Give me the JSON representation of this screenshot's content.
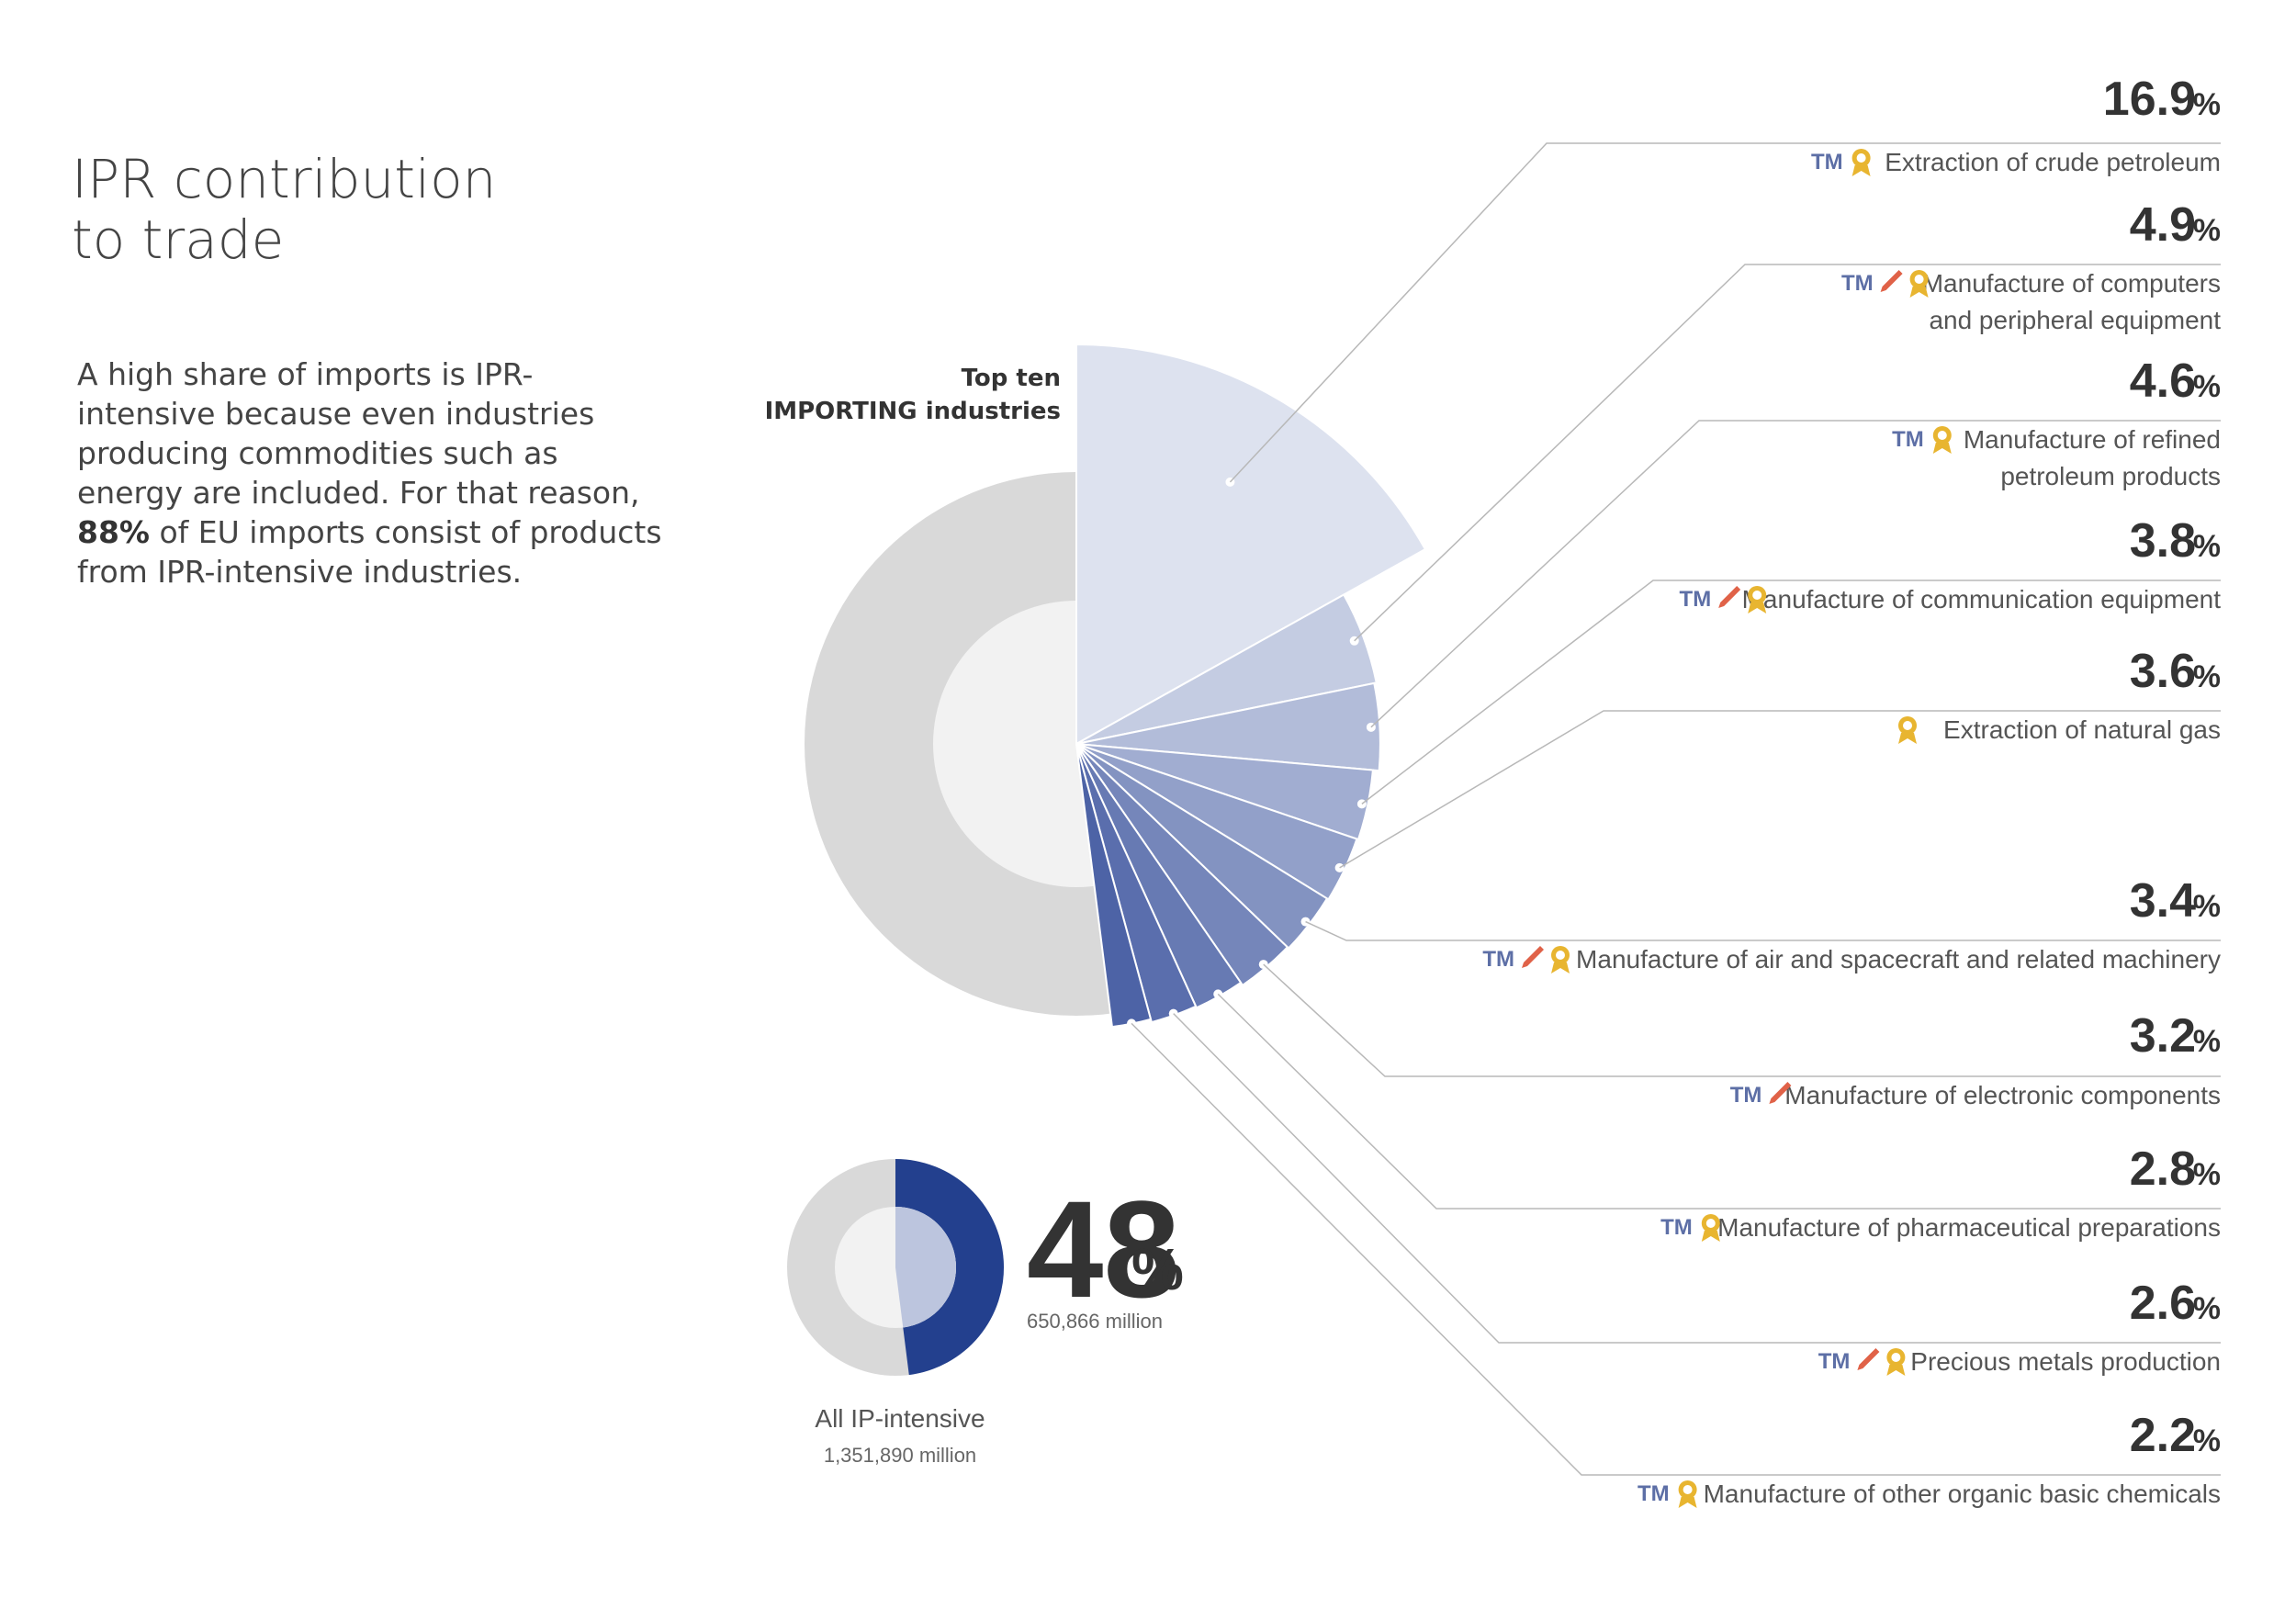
{
  "heading": {
    "line1": "IPR contribution",
    "line2": "to trade"
  },
  "intro": {
    "part1": "A high share of imports is IPR-intensive because even industries producing commodities such as energy are included. For that reason, ",
    "highlight": "88%",
    "part2": " of EU imports consist of products from IPR-intensive industries."
  },
  "chart_data": {
    "type": "pie",
    "title": "Top ten IMPORTING industries",
    "title_lines": [
      "Top ten",
      "IMPORTING industries"
    ],
    "main_share": {
      "value": 48,
      "unit": "%"
    },
    "summary": {
      "value": "48",
      "unit": "%",
      "amount": "650,866 million",
      "caption": "All IP-intensive",
      "total": "1,351,890 million"
    },
    "industries": [
      {
        "value": 16.9,
        "label": "16.9",
        "name_lines": [
          "Extraction of crude petroleum"
        ],
        "icons": [
          "TM",
          "award"
        ]
      },
      {
        "value": 4.9,
        "label": "4.9",
        "name_lines": [
          "Manufacture of computers",
          "and peripheral equipment"
        ],
        "icons": [
          "TM",
          "pencil",
          "award"
        ]
      },
      {
        "value": 4.6,
        "label": "4.6",
        "name_lines": [
          "Manufacture of refined",
          "petroleum products"
        ],
        "icons": [
          "TM",
          "award"
        ]
      },
      {
        "value": 3.8,
        "label": "3.8",
        "name_lines": [
          "Manufacture of communication equipment"
        ],
        "icons": [
          "TM",
          "pencil",
          "award"
        ]
      },
      {
        "value": 3.6,
        "label": "3.6",
        "name_lines": [
          "Extraction of natural gas"
        ],
        "icons": [
          "award"
        ]
      },
      {
        "value": 3.4,
        "label": "3.4",
        "name_lines": [
          "Manufacture of air and spacecraft and related machinery"
        ],
        "icons": [
          "TM",
          "pencil",
          "award"
        ]
      },
      {
        "value": 3.2,
        "label": "3.2",
        "name_lines": [
          "Manufacture of electronic components"
        ],
        "icons": [
          "TM",
          "pencil"
        ]
      },
      {
        "value": 2.8,
        "label": "2.8",
        "name_lines": [
          "Manufacture of pharmaceutical preparations"
        ],
        "icons": [
          "TM",
          "award"
        ]
      },
      {
        "value": 2.6,
        "label": "2.6",
        "name_lines": [
          "Precious metals production"
        ],
        "icons": [
          "TM",
          "pencil",
          "award"
        ]
      },
      {
        "value": 2.2,
        "label": "2.2",
        "name_lines": [
          "Manufacture of other organic basic chemicals"
        ],
        "icons": [
          "TM",
          "award"
        ]
      }
    ],
    "pct_symbol": "%",
    "tm_text": "TM",
    "colors": {
      "main": "#23408e",
      "rest": "#d9d9d9",
      "inner_main": "#bcc5de",
      "inner_rest": "#f2f2f2",
      "slice_light": "#dde2ef",
      "slice_dark": "#4d63a6",
      "leader": "#b8b8b8",
      "award": "#e8b530",
      "pencil": "#e06248",
      "tm": "#5d6fa6"
    }
  }
}
